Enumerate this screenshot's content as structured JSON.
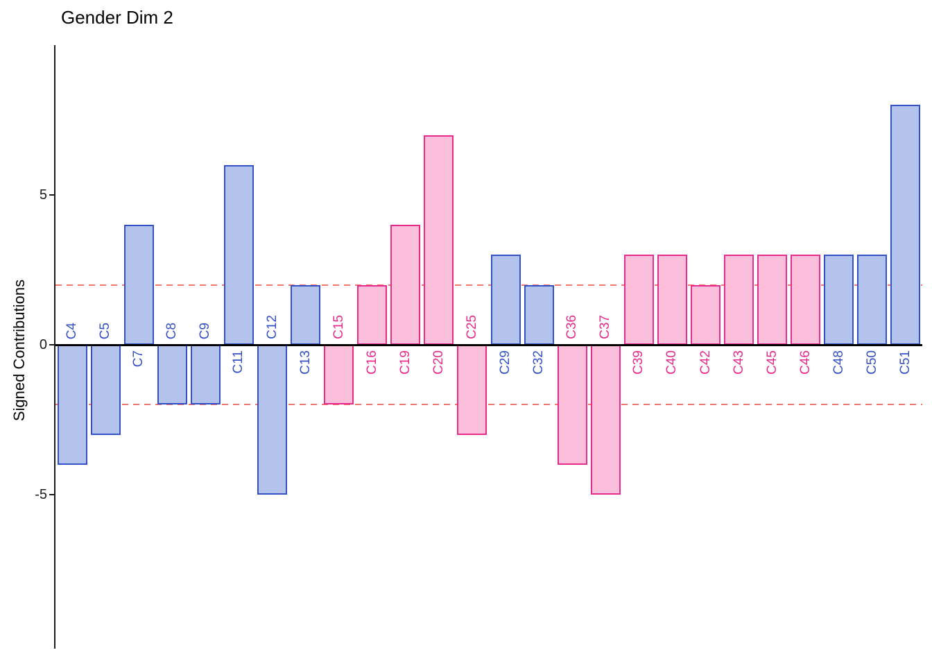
{
  "title": "Gender Dim 2",
  "axes": {
    "y_label": "Signed Contributions",
    "y_ticks": [
      "5",
      "0",
      "-5"
    ]
  },
  "chart_data": {
    "type": "bar",
    "title": "Gender Dim 2",
    "xlabel": "",
    "ylabel": "Signed Contributions",
    "categories": [
      "C4",
      "C5",
      "C7",
      "C8",
      "C9",
      "C11",
      "C12",
      "C13",
      "C15",
      "C16",
      "C19",
      "C20",
      "C25",
      "C29",
      "C32",
      "C36",
      "C37",
      "C39",
      "C40",
      "C42",
      "C43",
      "C45",
      "C46",
      "C48",
      "C50",
      "C51"
    ],
    "values": [
      -4,
      -3,
      4,
      -2,
      -2,
      6,
      -5,
      2,
      -2,
      2,
      4,
      7,
      -3,
      3,
      2,
      -4,
      -5,
      3,
      3,
      2,
      3,
      3,
      3,
      3,
      3,
      8
    ],
    "groups": [
      "blue",
      "blue",
      "blue",
      "blue",
      "blue",
      "blue",
      "blue",
      "blue",
      "pink",
      "pink",
      "pink",
      "pink",
      "pink",
      "blue",
      "blue",
      "pink",
      "pink",
      "pink",
      "pink",
      "pink",
      "pink",
      "pink",
      "pink",
      "blue",
      "blue",
      "blue"
    ],
    "yticks": [
      5,
      0,
      -5
    ],
    "ylim": [
      -10,
      10
    ],
    "reference_lines": [
      2,
      -2
    ],
    "zero_line": true,
    "grid": false,
    "legend_position": "none",
    "bar_label_rotation": 90,
    "palette": {
      "blue_fill": "#b3c3ec",
      "blue_border": "#3351c6",
      "pink_fill": "#fcbfdb",
      "pink_border": "#e72a8c",
      "ref_line": "#f8766d"
    }
  }
}
